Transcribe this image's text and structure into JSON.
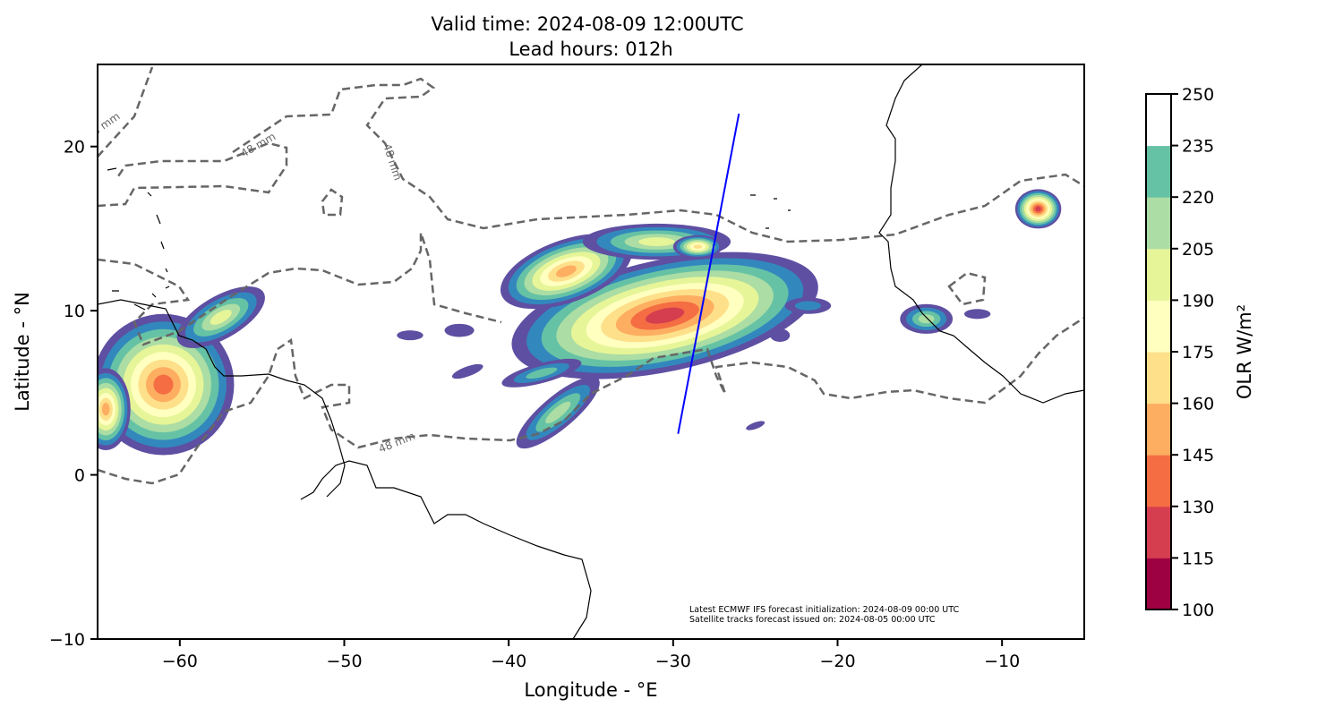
{
  "chart_data": {
    "type": "contour-map",
    "title_line1": "Valid time: 2024-08-09 12:00UTC",
    "title_line2": "Lead hours: 012h",
    "xlabel": "Longitude - °E",
    "ylabel": "Latitude - °N",
    "xlim": [
      -65,
      -5
    ],
    "ylim": [
      -10,
      25
    ],
    "xticks": [
      -60,
      -50,
      -40,
      -30,
      -20,
      -10
    ],
    "xtick_labels": [
      "−60",
      "−50",
      "−40",
      "−30",
      "−20",
      "−10"
    ],
    "yticks": [
      -10,
      0,
      10,
      20
    ],
    "ytick_labels": [
      "−10",
      "0",
      "10",
      "20"
    ],
    "colorbar": {
      "label": "OLR W/m²",
      "levels": [
        100,
        115,
        130,
        145,
        160,
        175,
        190,
        205,
        220,
        235,
        250
      ],
      "level_labels": [
        "100",
        "115",
        "130",
        "145",
        "160",
        "175",
        "190",
        "205",
        "220",
        "235",
        "250"
      ],
      "colors": [
        "#9e0142",
        "#d53e4f",
        "#f46d43",
        "#fdae61",
        "#fee08b",
        "#ffffbf",
        "#e6f598",
        "#abdda4",
        "#66c2a5",
        "#3288bd",
        "#5e4fa2",
        "#ffffff"
      ]
    },
    "contour_label": "48 mm",
    "contour_color": "#666666",
    "satellite_track": {
      "color": "#0000ff",
      "start": {
        "lon": -29.7,
        "lat": 2.5
      },
      "end": {
        "lon": -26.0,
        "lat": 22.0
      }
    },
    "annotation_line1": "Latest ECMWF IFS forecast initialization: 2024-08-09 00:00 UTC",
    "annotation_line2": "Satellite tracks forecast issued on: 2024-08-05 00:00 UTC"
  }
}
